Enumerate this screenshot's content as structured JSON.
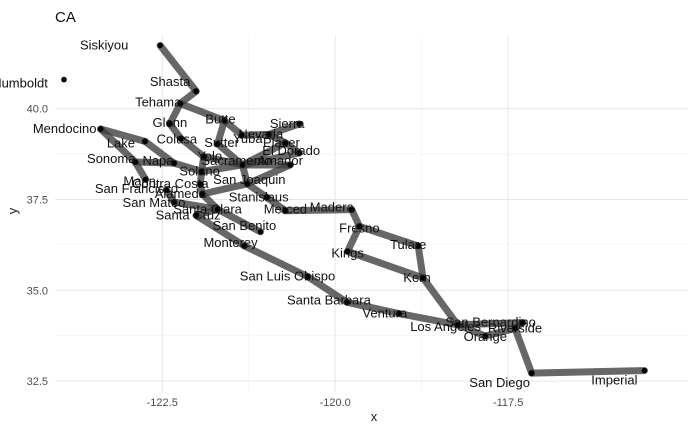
{
  "chart_data": {
    "type": "scatter",
    "title": "CA",
    "xlabel": "x",
    "ylabel": "y",
    "xlim": [
      -124.05,
      -114.9
    ],
    "ylim": [
      32.2,
      42.0
    ],
    "x_ticks": [
      -122.5,
      -120.0,
      -117.5
    ],
    "x_tick_labels": [
      "-122.5",
      "-120.0",
      "-117.5"
    ],
    "y_ticks": [
      32.5,
      35.0,
      37.5,
      40.0
    ],
    "y_tick_labels": [
      "32.5",
      "35.0",
      "37.5",
      "40.0"
    ],
    "grid": true,
    "legend": "none",
    "points": [
      {
        "name": "Siskiyou",
        "x": -122.53,
        "y": 41.74
      },
      {
        "name": "Humboldt",
        "x": -123.92,
        "y": 40.8
      },
      {
        "name": "Shasta",
        "x": -122.01,
        "y": 40.48
      },
      {
        "name": "Tehama",
        "x": -122.24,
        "y": 40.14
      },
      {
        "name": "Glenn",
        "x": -122.39,
        "y": 39.58
      },
      {
        "name": "Butte",
        "x": -121.6,
        "y": 39.67
      },
      {
        "name": "Sierra",
        "x": -120.52,
        "y": 39.58
      },
      {
        "name": "Nevada",
        "x": -120.96,
        "y": 39.29
      },
      {
        "name": "Colusa",
        "x": -122.23,
        "y": 39.18
      },
      {
        "name": "Sutter",
        "x": -121.7,
        "y": 39.03
      },
      {
        "name": "Yuba",
        "x": -121.35,
        "y": 39.27
      },
      {
        "name": "Placer",
        "x": -120.72,
        "y": 39.06
      },
      {
        "name": "El Dorado",
        "x": -120.52,
        "y": 38.78
      },
      {
        "name": "Yolo",
        "x": -121.9,
        "y": 38.68
      },
      {
        "name": "Sacramento",
        "x": -121.34,
        "y": 38.45
      },
      {
        "name": "Amador",
        "x": -120.65,
        "y": 38.45
      },
      {
        "name": "Mendocino",
        "x": -123.39,
        "y": 39.44
      },
      {
        "name": "Lake",
        "x": -122.75,
        "y": 39.1
      },
      {
        "name": "Sonoma",
        "x": -122.89,
        "y": 38.53
      },
      {
        "name": "Napa",
        "x": -122.33,
        "y": 38.5
      },
      {
        "name": "Solano",
        "x": -121.93,
        "y": 38.27
      },
      {
        "name": "Marin",
        "x": -122.74,
        "y": 38.05
      },
      {
        "name": "Contra Costa",
        "x": -121.95,
        "y": 37.92
      },
      {
        "name": "San Joaquin",
        "x": -121.27,
        "y": 37.93
      },
      {
        "name": "Alameda",
        "x": -121.92,
        "y": 37.65
      },
      {
        "name": "San Francisco",
        "x": -122.44,
        "y": 37.76
      },
      {
        "name": "San Mateo",
        "x": -122.33,
        "y": 37.43
      },
      {
        "name": "Stanislaus",
        "x": -120.99,
        "y": 37.56
      },
      {
        "name": "Santa Clara",
        "x": -121.7,
        "y": 37.23
      },
      {
        "name": "Merced",
        "x": -120.72,
        "y": 37.19
      },
      {
        "name": "Santa Cruz",
        "x": -122.01,
        "y": 37.06
      },
      {
        "name": "San Benito",
        "x": -121.08,
        "y": 36.61
      },
      {
        "name": "Monterey",
        "x": -121.31,
        "y": 36.22
      },
      {
        "name": "Madera",
        "x": -119.76,
        "y": 37.22
      },
      {
        "name": "Fresno",
        "x": -119.65,
        "y": 36.76
      },
      {
        "name": "Kings",
        "x": -119.82,
        "y": 36.07
      },
      {
        "name": "Tulare",
        "x": -118.8,
        "y": 36.22
      },
      {
        "name": "Kern",
        "x": -118.73,
        "y": 35.34
      },
      {
        "name": "San Luis Obispo",
        "x": -120.4,
        "y": 35.38
      },
      {
        "name": "Santa Barbara",
        "x": -119.83,
        "y": 34.67
      },
      {
        "name": "Ventura",
        "x": -119.08,
        "y": 34.36
      },
      {
        "name": "Los Angeles",
        "x": -118.23,
        "y": 34.05
      },
      {
        "name": "San Bernardino",
        "x": -117.29,
        "y": 34.11
      },
      {
        "name": "Riverside",
        "x": -117.4,
        "y": 33.95
      },
      {
        "name": "Orange",
        "x": -117.83,
        "y": 33.74
      },
      {
        "name": "San Diego",
        "x": -117.16,
        "y": 32.72
      },
      {
        "name": "Imperial",
        "x": -115.53,
        "y": 32.79
      }
    ],
    "edges": [
      [
        "Siskiyou",
        "Shasta"
      ],
      [
        "Shasta",
        "Tehama"
      ],
      [
        "Tehama",
        "Glenn"
      ],
      [
        "Glenn",
        "Colusa"
      ],
      [
        "Tehama",
        "Butte"
      ],
      [
        "Butte",
        "Sutter"
      ],
      [
        "Butte",
        "Yuba"
      ],
      [
        "Yuba",
        "Nevada"
      ],
      [
        "Nevada",
        "Sierra"
      ],
      [
        "Nevada",
        "Placer"
      ],
      [
        "Placer",
        "El Dorado"
      ],
      [
        "Placer",
        "Sacramento"
      ],
      [
        "El Dorado",
        "Sacramento"
      ],
      [
        "Sutter",
        "Sacramento"
      ],
      [
        "Colusa",
        "Yolo"
      ],
      [
        "Yolo",
        "Sacramento"
      ],
      [
        "Yolo",
        "Solano"
      ],
      [
        "Mendocino",
        "Lake"
      ],
      [
        "Lake",
        "Napa"
      ],
      [
        "Mendocino",
        "Sonoma"
      ],
      [
        "Sonoma",
        "Marin"
      ],
      [
        "Sonoma",
        "Napa"
      ],
      [
        "Napa",
        "Solano"
      ],
      [
        "Solano",
        "Contra Costa"
      ],
      [
        "Solano",
        "Sacramento"
      ],
      [
        "Sacramento",
        "San Joaquin"
      ],
      [
        "Sacramento",
        "Amador"
      ],
      [
        "Amador",
        "San Joaquin"
      ],
      [
        "Contra Costa",
        "Alameda"
      ],
      [
        "Alameda",
        "San Joaquin"
      ],
      [
        "San Francisco",
        "San Mateo"
      ],
      [
        "San Mateo",
        "Santa Clara"
      ],
      [
        "Alameda",
        "Santa Clara"
      ],
      [
        "Santa Clara",
        "Santa Cruz"
      ],
      [
        "Santa Clara",
        "San Benito"
      ],
      [
        "Santa Cruz",
        "Monterey"
      ],
      [
        "San Joaquin",
        "Stanislaus"
      ],
      [
        "Stanislaus",
        "Merced"
      ],
      [
        "Merced",
        "Madera"
      ],
      [
        "Madera",
        "Fresno"
      ],
      [
        "Fresno",
        "Kings"
      ],
      [
        "Fresno",
        "Tulare"
      ],
      [
        "Kings",
        "Kern"
      ],
      [
        "Tulare",
        "Kern"
      ],
      [
        "Monterey",
        "San Luis Obispo"
      ],
      [
        "San Luis Obispo",
        "Santa Barbara"
      ],
      [
        "Santa Barbara",
        "Ventura"
      ],
      [
        "Ventura",
        "Los Angeles"
      ],
      [
        "Kern",
        "Los Angeles"
      ],
      [
        "Los Angeles",
        "San Bernardino"
      ],
      [
        "Los Angeles",
        "Orange"
      ],
      [
        "Orange",
        "Riverside"
      ],
      [
        "San Bernardino",
        "Riverside"
      ],
      [
        "Riverside",
        "San Diego"
      ],
      [
        "San Diego",
        "Imperial"
      ]
    ],
    "label_nudges": {
      "Siskiyou": [
        -56,
        4
      ],
      "Humboldt": [
        -44,
        8
      ],
      "Shasta": [
        -26,
        -5
      ],
      "Tehama": [
        -22,
        3
      ],
      "Glenn": [
        0,
        3
      ],
      "Butte": [
        -4,
        3
      ],
      "Sierra": [
        -12,
        4
      ],
      "Nevada": [
        -8,
        4
      ],
      "Colusa": [
        -4,
        5
      ],
      "Sutter": [
        4,
        3
      ],
      "Yuba": [
        6,
        8
      ],
      "Placer": [
        -4,
        4
      ],
      "El Dorado": [
        -8,
        2
      ],
      "Yolo": [
        6,
        4
      ],
      "Sacramento": [
        -6,
        0
      ],
      "Amador": [
        -10,
        0
      ],
      "Mendocino": [
        -36,
        4
      ],
      "Lake": [
        -24,
        6
      ],
      "Sonoma": [
        -24,
        1
      ],
      "Napa": [
        -16,
        2
      ],
      "Solano": [
        -2,
        4
      ],
      "Marin": [
        -6,
        6
      ],
      "Contra Costa": [
        -30,
        4
      ],
      "San Joaquin": [
        2,
        0
      ],
      "Alameda": [
        -22,
        4
      ],
      "San Francisco": [
        -30,
        3
      ],
      "San Mateo": [
        -20,
        5
      ],
      "Stanislaus": [
        -8,
        4
      ],
      "Santa Clara": [
        -10,
        4
      ],
      "Merced": [
        0,
        3
      ],
      "Santa Cruz": [
        -8,
        4
      ],
      "San Benito": [
        -16,
        -2
      ],
      "Monterey": [
        -14,
        1
      ],
      "Madera": [
        -20,
        2
      ],
      "Fresno": [
        0,
        6
      ],
      "Kings": [
        0,
        6
      ],
      "Tulare": [
        -10,
        3
      ],
      "Kern": [
        -6,
        4
      ],
      "San Luis Obispo": [
        -20,
        4
      ],
      "Santa Barbara": [
        -18,
        2
      ],
      "Ventura": [
        -14,
        4
      ],
      "Los Angeles": [
        -12,
        6
      ],
      "San Bernardino": [
        -32,
        4
      ],
      "Riverside": [
        0,
        4
      ],
      "Orange": [
        0,
        5
      ],
      "San Diego": [
        -32,
        14
      ],
      "Imperial": [
        -30,
        14
      ]
    }
  }
}
